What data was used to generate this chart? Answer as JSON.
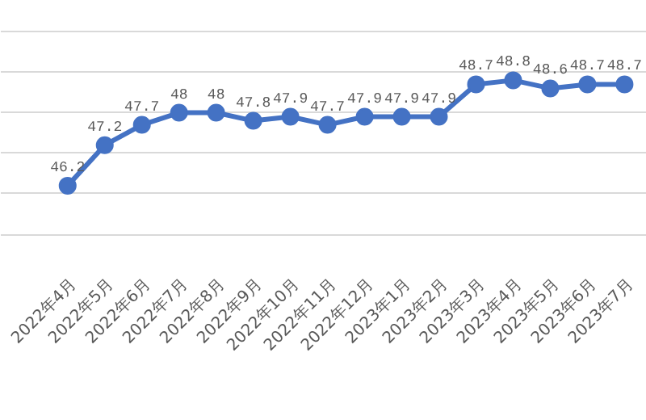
{
  "chart_data": {
    "type": "line",
    "categories": [
      "2022年4月",
      "2022年5月",
      "2022年6月",
      "2022年7月",
      "2022年8月",
      "2022年9月",
      "2022年10月",
      "2022年11月",
      "2022年12月",
      "2023年1月",
      "2023年2月",
      "2023年3月",
      "2023年4月",
      "2023年5月",
      "2023年6月",
      "2023年7月"
    ],
    "series": [
      {
        "color": "#4472c4",
        "values": [
          46.2,
          47.2,
          47.7,
          48,
          48,
          47.8,
          47.9,
          47.7,
          47.9,
          47.9,
          47.9,
          48.7,
          48.8,
          48.6,
          48.7,
          48.7
        ]
      }
    ],
    "ylim": [
      40.4,
      50.76
    ],
    "yticks": [
      {
        "value": 45,
        "label": null
      },
      {
        "value": 46,
        "label": null
      },
      {
        "value": 47,
        "label": null
      },
      {
        "value": 48,
        "label": null
      },
      {
        "value": 49,
        "label": null
      },
      {
        "value": 50,
        "label": null
      }
    ],
    "tick_labels": "x",
    "grid": "y",
    "marker": "circle",
    "line_style": "solid",
    "data_labels": true
  }
}
